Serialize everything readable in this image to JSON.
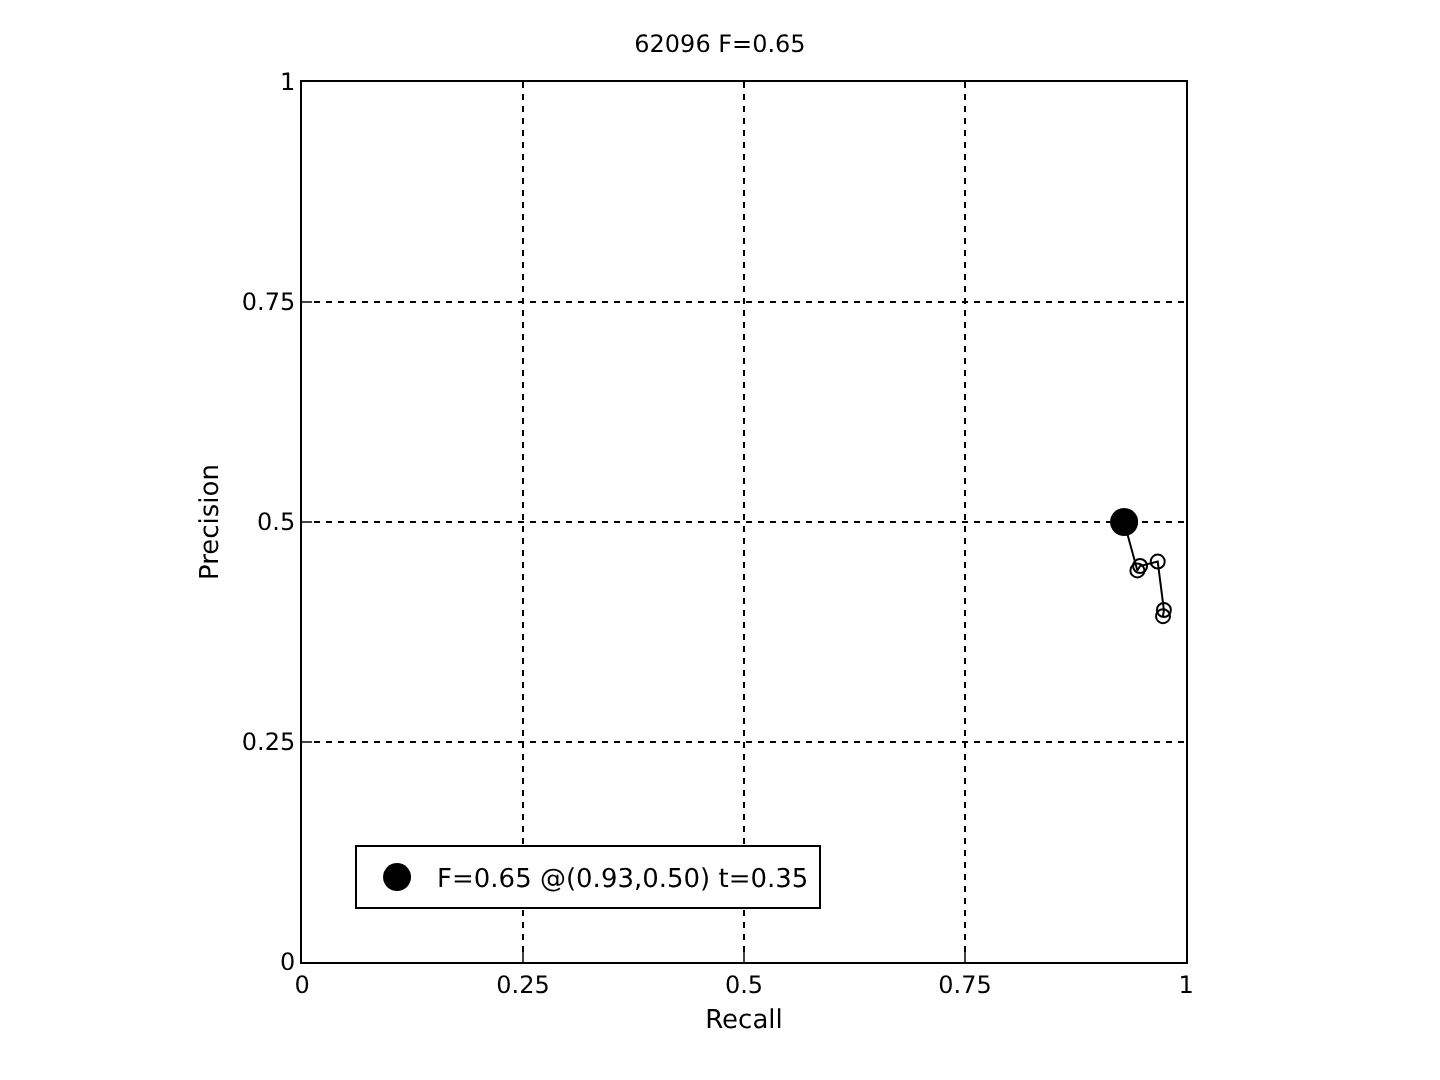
{
  "chart_data": {
    "type": "line",
    "title": "62096 F=0.65",
    "xlabel": "Recall",
    "ylabel": "Precision",
    "xlim": [
      0,
      1
    ],
    "ylim": [
      0,
      1
    ],
    "xticks": [
      0,
      0.25,
      0.5,
      0.75,
      1
    ],
    "yticks": [
      0,
      0.25,
      0.5,
      0.75,
      1
    ],
    "grid": true,
    "legend": "bottom left",
    "series": [
      {
        "marker": "circle",
        "color": "#000000",
        "x": [
          0.93,
          0.945,
          0.948,
          0.968,
          0.975,
          0.974
        ],
        "values": [
          0.5,
          0.445,
          0.45,
          0.455,
          0.4,
          0.393
        ]
      },
      {
        "type": "scatter",
        "marker": "circle",
        "name": "F=0.65 @(0.93,0.50) t=0.35",
        "color": "#000000",
        "x": [
          0.93
        ],
        "values": [
          0.5
        ]
      }
    ]
  }
}
